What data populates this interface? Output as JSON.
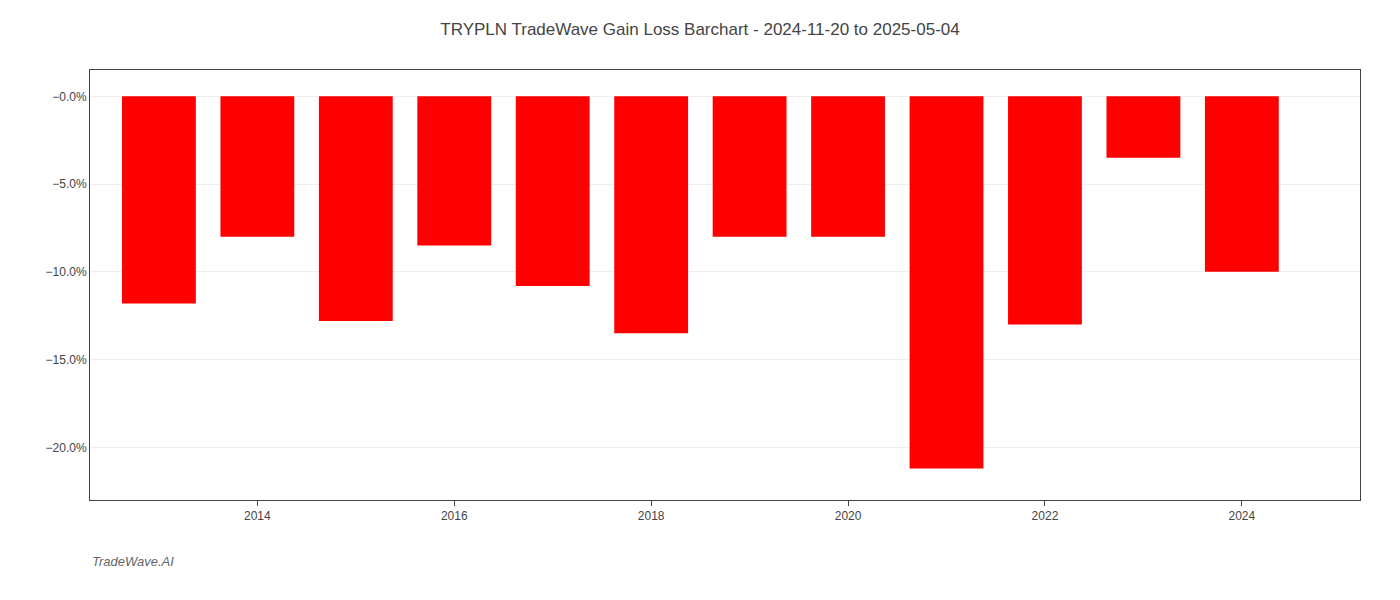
{
  "chart_data": {
    "type": "bar",
    "title": "TRYPLN TradeWave Gain Loss Barchart - 2024-11-20 to 2025-05-04",
    "annotations": [
      "TradeWave.AI"
    ],
    "x": [
      2013,
      2014,
      2015,
      2016,
      2017,
      2018,
      2019,
      2020,
      2021,
      2022,
      2023,
      2024
    ],
    "values": [
      -11.8,
      -8.0,
      -12.8,
      -8.5,
      -10.8,
      -13.5,
      -8.0,
      -8.0,
      -21.2,
      -13.0,
      -3.5,
      -10.0
    ],
    "color": "#ff0000",
    "xlim": [
      2012.3,
      2025.2
    ],
    "xticks": [
      2014,
      2016,
      2018,
      2020,
      2022,
      2024
    ],
    "ylim": [
      -23.0,
      1.5
    ],
    "yticks": [
      {
        "value": 0.0,
        "label": "−0.0%"
      },
      {
        "value": -5.0,
        "label": "−5.0%"
      },
      {
        "value": -10.0,
        "label": "−10.0%"
      },
      {
        "value": -15.0,
        "label": "−15.0%"
      },
      {
        "value": -20.0,
        "label": "−20.0%"
      }
    ],
    "grid": true
  }
}
